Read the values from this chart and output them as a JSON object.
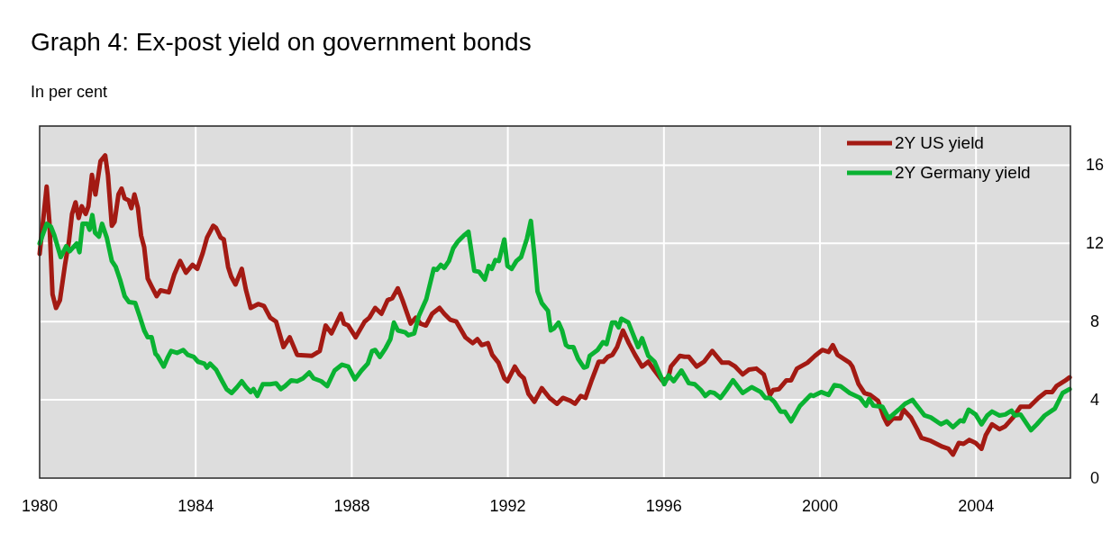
{
  "chart_data": {
    "type": "line",
    "title": "Graph 4: Ex-post yield on government bonds",
    "subtitle": "In per cent",
    "xlim": [
      1980,
      2006.42
    ],
    "xticks": [
      1980,
      1984,
      1988,
      1992,
      1996,
      2000,
      2004
    ],
    "ylim": [
      0,
      18
    ],
    "yticks": [
      0,
      4,
      8,
      12,
      16
    ],
    "grid": true,
    "legend": "top right",
    "line_style": "solid",
    "marker": "none",
    "series": [
      {
        "name": "2Y US yield",
        "color": "#a31a13",
        "x": [
          1980.0,
          1980.18,
          1980.25,
          1980.33,
          1980.42,
          1980.52,
          1980.65,
          1980.75,
          1980.83,
          1980.92,
          1981.0,
          1981.08,
          1981.18,
          1981.25,
          1981.34,
          1981.43,
          1981.56,
          1981.68,
          1981.75,
          1981.85,
          1981.92,
          1982.02,
          1982.1,
          1982.18,
          1982.28,
          1982.35,
          1982.43,
          1982.52,
          1982.6,
          1982.68,
          1982.77,
          1982.87,
          1983.0,
          1983.1,
          1983.31,
          1983.45,
          1983.6,
          1983.75,
          1983.92,
          1984.04,
          1984.18,
          1984.29,
          1984.45,
          1984.52,
          1984.64,
          1984.72,
          1984.83,
          1984.91,
          1985.02,
          1985.18,
          1985.29,
          1985.41,
          1985.6,
          1985.75,
          1985.91,
          1986.06,
          1986.25,
          1986.41,
          1986.6,
          1986.98,
          1987.18,
          1987.33,
          1987.48,
          1987.72,
          1987.8,
          1987.91,
          1988.1,
          1988.33,
          1988.45,
          1988.6,
          1988.76,
          1988.92,
          1989.04,
          1989.18,
          1989.3,
          1989.51,
          1989.64,
          1989.76,
          1989.9,
          1990.06,
          1990.25,
          1990.37,
          1990.52,
          1990.68,
          1990.91,
          1991.1,
          1991.22,
          1991.33,
          1991.49,
          1991.6,
          1991.76,
          1991.91,
          1991.99,
          1992.18,
          1992.3,
          1992.41,
          1992.53,
          1992.68,
          1992.87,
          1993.07,
          1993.26,
          1993.41,
          1993.6,
          1993.72,
          1993.87,
          1993.99,
          1994.14,
          1994.33,
          1994.45,
          1994.56,
          1994.68,
          1994.8,
          1994.95,
          1995.1,
          1995.26,
          1995.44,
          1995.6,
          1995.76,
          1995.95,
          1996.11,
          1996.18,
          1996.41,
          1996.53,
          1996.64,
          1996.84,
          1997.03,
          1997.24,
          1997.49,
          1997.67,
          1997.83,
          1998.02,
          1998.18,
          1998.37,
          1998.56,
          1998.72,
          1998.8,
          1998.95,
          1999.14,
          1999.26,
          1999.41,
          1999.68,
          1999.87,
          2000.06,
          2000.22,
          2000.33,
          2000.45,
          2000.76,
          2000.83,
          2000.99,
          2001.14,
          2001.29,
          2001.49,
          2001.64,
          2001.73,
          2001.87,
          2002.06,
          2002.14,
          2002.33,
          2002.49,
          2002.6,
          2002.84,
          2003.14,
          2003.29,
          2003.41,
          2003.56,
          2003.68,
          2003.83,
          2003.99,
          2004.14,
          2004.25,
          2004.41,
          2004.6,
          2004.75,
          2004.95,
          2005.14,
          2005.37,
          2005.6,
          2005.79,
          2005.95,
          2006.06,
          2006.26,
          2006.4
        ],
        "values": [
          11.46,
          14.9,
          13.1,
          9.4,
          8.7,
          9.1,
          10.9,
          12.1,
          13.5,
          14.1,
          13.3,
          13.9,
          13.5,
          13.9,
          15.5,
          14.5,
          16.2,
          16.5,
          15.5,
          12.9,
          13.1,
          14.5,
          14.8,
          14.3,
          14.2,
          13.8,
          14.5,
          13.8,
          12.4,
          11.8,
          10.2,
          9.8,
          9.3,
          9.6,
          9.5,
          10.4,
          11.1,
          10.5,
          10.9,
          10.7,
          11.5,
          12.3,
          12.9,
          12.8,
          12.3,
          12.2,
          10.8,
          10.3,
          9.9,
          10.7,
          9.6,
          8.7,
          8.9,
          8.8,
          8.2,
          8.0,
          6.7,
          7.2,
          6.3,
          6.25,
          6.5,
          7.8,
          7.4,
          8.4,
          7.9,
          7.8,
          7.2,
          8.0,
          8.2,
          8.7,
          8.4,
          9.1,
          9.2,
          9.7,
          9.1,
          7.9,
          8.2,
          7.9,
          7.8,
          8.4,
          8.7,
          8.4,
          8.1,
          8.0,
          7.2,
          6.9,
          7.1,
          6.8,
          6.9,
          6.3,
          5.9,
          5.1,
          4.95,
          5.7,
          5.3,
          5.1,
          4.3,
          3.9,
          4.6,
          4.1,
          3.8,
          4.1,
          3.95,
          3.8,
          4.2,
          4.1,
          4.95,
          5.95,
          5.95,
          6.2,
          6.3,
          6.7,
          7.55,
          6.9,
          6.3,
          5.7,
          5.95,
          5.5,
          5.0,
          5.1,
          5.7,
          6.25,
          6.2,
          6.2,
          5.7,
          5.95,
          6.5,
          5.9,
          5.9,
          5.7,
          5.3,
          5.55,
          5.6,
          5.3,
          4.25,
          4.5,
          4.55,
          5.0,
          5.0,
          5.6,
          5.9,
          6.25,
          6.55,
          6.45,
          6.8,
          6.3,
          5.9,
          5.7,
          4.8,
          4.35,
          4.25,
          3.95,
          3.1,
          2.75,
          3.05,
          3.05,
          3.5,
          3.1,
          2.5,
          2.05,
          1.9,
          1.6,
          1.5,
          1.2,
          1.8,
          1.75,
          1.95,
          1.8,
          1.5,
          2.2,
          2.75,
          2.5,
          2.65,
          3.1,
          3.65,
          3.65,
          4.1,
          4.4,
          4.4,
          4.7,
          4.95,
          5.15
        ]
      },
      {
        "name": "2Y Germany yield",
        "color": "#0ab232",
        "x": [
          1980.0,
          1980.18,
          1980.29,
          1980.37,
          1980.54,
          1980.68,
          1980.77,
          1980.95,
          1981.02,
          1981.1,
          1981.22,
          1981.28,
          1981.35,
          1981.42,
          1981.52,
          1981.6,
          1981.72,
          1981.85,
          1981.95,
          1982.06,
          1982.18,
          1982.29,
          1982.45,
          1982.56,
          1982.68,
          1982.77,
          1982.87,
          1982.97,
          1983.02,
          1983.18,
          1983.29,
          1983.37,
          1983.52,
          1983.68,
          1983.8,
          1983.95,
          1984.06,
          1984.22,
          1984.29,
          1984.37,
          1984.52,
          1984.68,
          1984.79,
          1984.92,
          1985.06,
          1985.18,
          1985.29,
          1985.41,
          1985.48,
          1985.58,
          1985.72,
          1985.91,
          1986.06,
          1986.18,
          1986.29,
          1986.45,
          1986.6,
          1986.75,
          1986.91,
          1987.02,
          1987.22,
          1987.37,
          1987.56,
          1987.75,
          1987.91,
          1988.08,
          1988.25,
          1988.41,
          1988.52,
          1988.6,
          1988.72,
          1988.87,
          1988.99,
          1989.08,
          1989.18,
          1989.37,
          1989.45,
          1989.6,
          1989.72,
          1989.91,
          1990.1,
          1990.18,
          1990.28,
          1990.37,
          1990.49,
          1990.6,
          1990.72,
          1990.87,
          1990.99,
          1991.14,
          1991.26,
          1991.41,
          1991.51,
          1991.59,
          1991.68,
          1991.77,
          1991.91,
          1991.99,
          1992.1,
          1992.22,
          1992.34,
          1992.49,
          1992.59,
          1992.68,
          1992.76,
          1992.87,
          1993.03,
          1993.1,
          1993.18,
          1993.3,
          1993.39,
          1993.49,
          1993.56,
          1993.68,
          1993.8,
          1993.95,
          1994.03,
          1994.1,
          1994.3,
          1994.44,
          1994.53,
          1994.67,
          1994.76,
          1994.84,
          1994.91,
          1995.09,
          1995.18,
          1995.34,
          1995.44,
          1995.6,
          1995.76,
          1995.91,
          1996.01,
          1996.12,
          1996.25,
          1996.45,
          1996.64,
          1996.79,
          1996.95,
          1997.06,
          1997.18,
          1997.29,
          1997.45,
          1997.6,
          1997.77,
          1998.02,
          1998.25,
          1998.48,
          1998.6,
          1998.72,
          1998.83,
          1998.99,
          1999.1,
          1999.26,
          1999.49,
          1999.76,
          1999.83,
          2000.03,
          2000.22,
          2000.37,
          2000.53,
          2000.76,
          2001.03,
          2001.18,
          2001.26,
          2001.37,
          2001.6,
          2001.76,
          2002.02,
          2002.18,
          2002.37,
          2002.68,
          2002.84,
          2003.1,
          2003.25,
          2003.41,
          2003.6,
          2003.68,
          2003.81,
          2003.99,
          2004.14,
          2004.29,
          2004.41,
          2004.6,
          2004.75,
          2004.91,
          2004.99,
          2005.14,
          2005.41,
          2005.56,
          2005.76,
          2006.02,
          2006.22,
          2006.4
        ],
        "values": [
          12.0,
          13.0,
          12.85,
          12.45,
          11.3,
          11.85,
          11.6,
          12.0,
          11.55,
          13.0,
          13.0,
          12.7,
          13.45,
          12.55,
          12.35,
          13.0,
          12.3,
          11.1,
          10.8,
          10.15,
          9.3,
          9.0,
          8.95,
          8.3,
          7.55,
          7.2,
          7.2,
          6.35,
          6.25,
          5.7,
          6.2,
          6.5,
          6.4,
          6.55,
          6.3,
          6.2,
          5.95,
          5.85,
          5.65,
          5.85,
          5.55,
          4.95,
          4.55,
          4.35,
          4.65,
          4.95,
          4.65,
          4.4,
          4.55,
          4.2,
          4.8,
          4.8,
          4.85,
          4.55,
          4.7,
          5.0,
          4.95,
          5.1,
          5.4,
          5.1,
          4.95,
          4.7,
          5.5,
          5.8,
          5.7,
          5.05,
          5.5,
          5.85,
          6.5,
          6.55,
          6.2,
          6.65,
          7.1,
          7.95,
          7.55,
          7.45,
          7.3,
          7.4,
          8.3,
          9.15,
          10.7,
          10.65,
          10.9,
          10.75,
          11.1,
          11.75,
          12.1,
          12.4,
          12.6,
          10.6,
          10.55,
          10.15,
          10.85,
          10.7,
          11.15,
          11.1,
          12.2,
          10.85,
          10.7,
          11.1,
          11.3,
          12.25,
          13.15,
          11.4,
          9.55,
          8.95,
          8.55,
          7.55,
          7.65,
          7.95,
          7.55,
          6.8,
          6.7,
          6.7,
          6.1,
          5.65,
          5.7,
          6.25,
          6.55,
          6.95,
          6.85,
          7.95,
          7.95,
          7.7,
          8.15,
          7.95,
          7.5,
          6.7,
          7.15,
          6.25,
          5.95,
          5.25,
          4.8,
          5.25,
          4.95,
          5.5,
          4.85,
          4.8,
          4.5,
          4.2,
          4.4,
          4.35,
          4.1,
          4.5,
          5.0,
          4.35,
          4.65,
          4.4,
          4.1,
          4.1,
          3.9,
          3.4,
          3.4,
          2.9,
          3.7,
          4.25,
          4.2,
          4.4,
          4.25,
          4.75,
          4.7,
          4.35,
          4.1,
          3.7,
          4.05,
          3.7,
          3.65,
          3.05,
          3.5,
          3.8,
          4.0,
          3.2,
          3.1,
          2.75,
          2.9,
          2.6,
          2.95,
          2.9,
          3.5,
          3.25,
          2.75,
          3.2,
          3.4,
          3.2,
          3.25,
          3.45,
          3.2,
          3.25,
          2.45,
          2.75,
          3.2,
          3.55,
          4.35,
          4.55
        ]
      }
    ]
  }
}
